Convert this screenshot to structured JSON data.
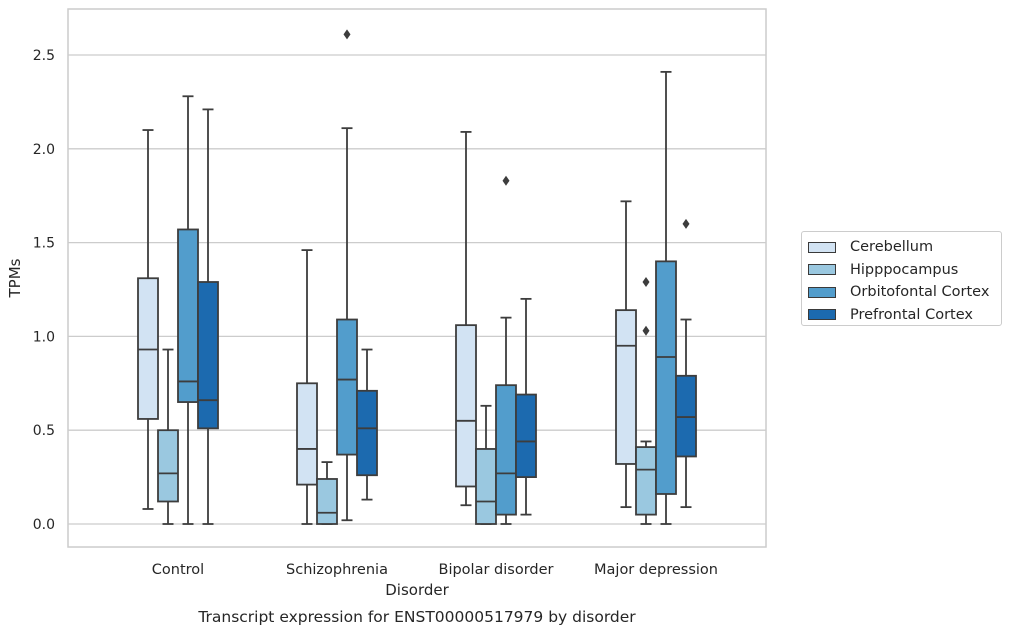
{
  "chart_data": {
    "type": "box",
    "title": "Transcript expression for ENST00000517979 by disorder",
    "xlabel": "Disorder",
    "ylabel": "TPMs",
    "ylim": [
      -0.13,
      2.76
    ],
    "yticks": [
      "0.0",
      "0.5",
      "1.0",
      "1.5",
      "2.0",
      "2.5"
    ],
    "grid": true,
    "legend_position": "right",
    "categories": [
      "Control",
      "Schizophrenia",
      "Bipolar disorder",
      "Major depression"
    ],
    "series": [
      {
        "name": "Cerebellum",
        "color": "#d2e3f3",
        "boxes": [
          {
            "whislo": 0.08,
            "q1": 0.56,
            "med": 0.93,
            "q3": 1.31,
            "whishi": 2.1,
            "fliers": []
          },
          {
            "whislo": 0.0,
            "q1": 0.21,
            "med": 0.4,
            "q3": 0.75,
            "whishi": 1.46,
            "fliers": []
          },
          {
            "whislo": 0.1,
            "q1": 0.2,
            "med": 0.55,
            "q3": 1.06,
            "whishi": 2.09,
            "fliers": []
          },
          {
            "whislo": 0.09,
            "q1": 0.32,
            "med": 0.95,
            "q3": 1.14,
            "whishi": 1.72,
            "fliers": []
          }
        ]
      },
      {
        "name": "Hipppocampus",
        "color": "#9ac8e0",
        "boxes": [
          {
            "whislo": 0.0,
            "q1": 0.12,
            "med": 0.27,
            "q3": 0.5,
            "whishi": 0.93,
            "fliers": []
          },
          {
            "whislo": 0.0,
            "q1": 0.0,
            "med": 0.06,
            "q3": 0.24,
            "whishi": 0.33,
            "fliers": []
          },
          {
            "whislo": 0.0,
            "q1": 0.0,
            "med": 0.12,
            "q3": 0.4,
            "whishi": 0.63,
            "fliers": []
          },
          {
            "whislo": 0.0,
            "q1": 0.05,
            "med": 0.29,
            "q3": 0.41,
            "whishi": 0.44,
            "fliers": [
              1.03,
              1.29
            ]
          }
        ]
      },
      {
        "name": "Orbitofontal Cortex",
        "color": "#529dcc",
        "boxes": [
          {
            "whislo": 0.0,
            "q1": 0.65,
            "med": 0.76,
            "q3": 1.57,
            "whishi": 2.28,
            "fliers": []
          },
          {
            "whislo": 0.02,
            "q1": 0.37,
            "med": 0.77,
            "q3": 1.09,
            "whishi": 2.11,
            "fliers": [
              2.61
            ]
          },
          {
            "whislo": 0.0,
            "q1": 0.05,
            "med": 0.27,
            "q3": 0.74,
            "whishi": 1.1,
            "fliers": [
              1.83
            ]
          },
          {
            "whislo": 0.0,
            "q1": 0.16,
            "med": 0.89,
            "q3": 1.4,
            "whishi": 2.41,
            "fliers": []
          }
        ]
      },
      {
        "name": "Prefrontal Cortex",
        "color": "#1c6aaf",
        "boxes": [
          {
            "whislo": 0.0,
            "q1": 0.51,
            "med": 0.66,
            "q3": 1.29,
            "whishi": 2.21,
            "fliers": []
          },
          {
            "whislo": 0.13,
            "q1": 0.26,
            "med": 0.51,
            "q3": 0.71,
            "whishi": 0.93,
            "fliers": []
          },
          {
            "whislo": 0.05,
            "q1": 0.25,
            "med": 0.44,
            "q3": 0.69,
            "whishi": 1.2,
            "fliers": []
          },
          {
            "whislo": 0.09,
            "q1": 0.36,
            "med": 0.57,
            "q3": 0.79,
            "whishi": 1.09,
            "fliers": [
              1.6
            ]
          }
        ]
      }
    ]
  }
}
